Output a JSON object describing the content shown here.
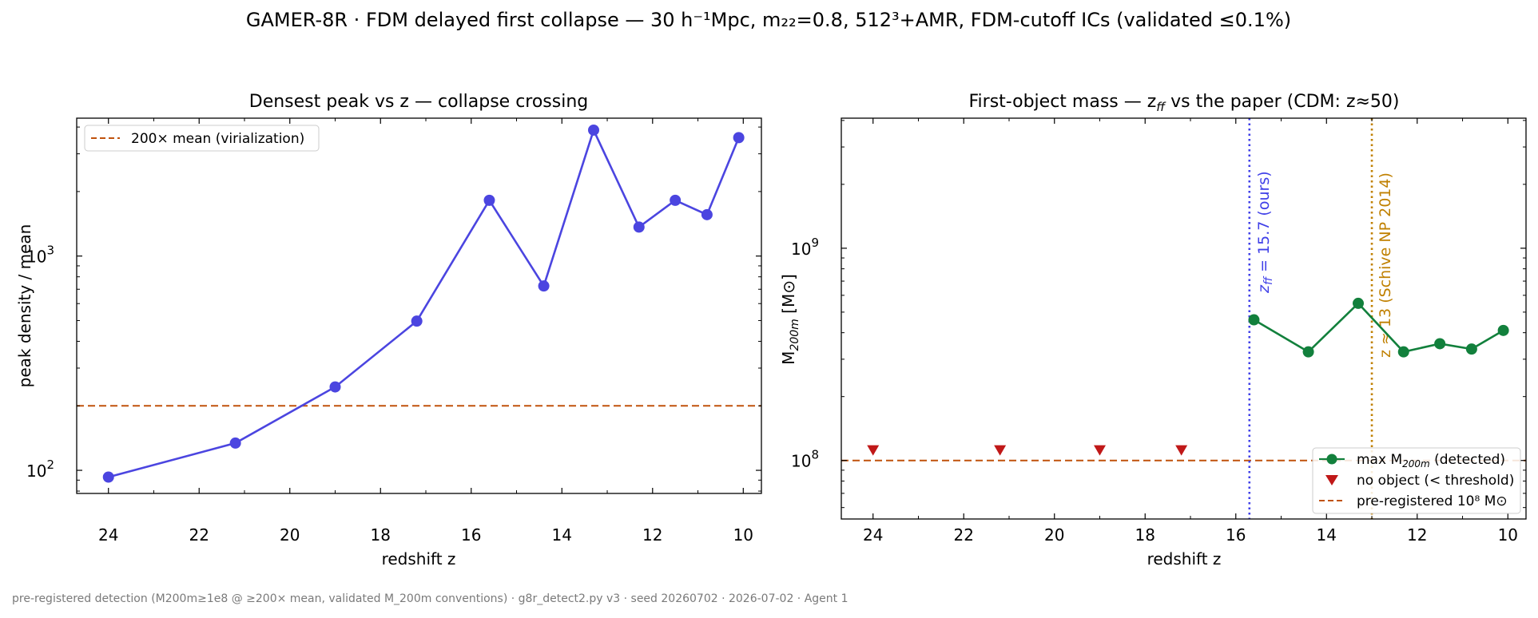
{
  "figure": {
    "suptitle": "GAMER-8R · FDM delayed first collapse — 30 h⁻¹Mpc, m₂₂=0.8, 512³+AMR, FDM-cutoff ICs (validated ≤0.1%)",
    "footer": "pre-registered detection (M200m≥1e8 @ ≥200× mean, validated M_200m conventions) · g8r_detect2.py v3 · seed 20260702 · 2026-07-02 · Agent 1"
  },
  "chart_data": [
    {
      "type": "line",
      "title": "Densest peak vs z — collapse crossing",
      "xlabel": "redshift z",
      "ylabel": "peak density / mean",
      "xlim": [
        24.7,
        9.6
      ],
      "ylim": [
        78,
        4400
      ],
      "yscale": "log",
      "x_inverted": true,
      "xticks": [
        "24",
        "22",
        "20",
        "18",
        "16",
        "14",
        "12",
        "10"
      ],
      "yticks": [
        {
          "base": "10",
          "exp": "2",
          "value": 100
        },
        {
          "base": "10",
          "exp": "3",
          "value": 1000
        }
      ],
      "series": [
        {
          "color": "#4b45e0",
          "x": [
            24.0,
            21.2,
            19.0,
            17.2,
            15.6,
            14.4,
            13.3,
            12.3,
            11.5,
            10.8,
            10.1
          ],
          "y": [
            93,
            134,
            245,
            497,
            1820,
            725,
            3870,
            1365,
            1820,
            1560,
            3570
          ]
        }
      ],
      "hlines": [
        {
          "y": 200,
          "color": "#c0520c",
          "style": "dashed",
          "label": "200× mean (virialization)"
        }
      ],
      "legend": {
        "position": "upper-left"
      }
    },
    {
      "type": "line",
      "title_parts": {
        "pre": "First-object mass — z",
        "sub": "ff",
        "post": " vs the paper (CDM: z≈50)"
      },
      "xlabel": "redshift z",
      "ylabel": {
        "pre": "M",
        "sub": "200m",
        "post": " [M",
        "symbol": "⊙",
        "close": "]"
      },
      "xlim": [
        24.7,
        9.6
      ],
      "ylim": [
        53000000.0,
        4100000000.0
      ],
      "yscale": "log",
      "x_inverted": true,
      "xticks": [
        "24",
        "22",
        "20",
        "18",
        "16",
        "14",
        "12",
        "10"
      ],
      "yticks": [
        {
          "base": "10",
          "exp": "8",
          "value": 100000000
        },
        {
          "base": "10",
          "exp": "9",
          "value": 1000000000
        }
      ],
      "series": [
        {
          "name": "max M200m (detected)",
          "color": "#12803c",
          "marker": "circle",
          "x": [
            15.6,
            14.4,
            13.3,
            12.3,
            11.5,
            10.8,
            10.1
          ],
          "y": [
            460000000.0,
            325000000.0,
            550000000.0,
            325000000.0,
            355000000.0,
            335000000.0,
            410000000.0
          ]
        },
        {
          "name": "no object (< threshold)",
          "color": "#c01818",
          "marker": "triangle-down",
          "x": [
            24.0,
            21.2,
            19.0,
            17.2
          ],
          "y": [
            112000000.0,
            112000000.0,
            112000000.0,
            112000000.0
          ]
        }
      ],
      "hlines": [
        {
          "y": 100000000,
          "color": "#c0520c",
          "style": "dashed",
          "label": "pre-registered 10⁸ M⊙"
        }
      ],
      "vlines": [
        {
          "x": 15.7,
          "color": "#4040e8",
          "style": "dotted",
          "label_pre": "z",
          "label_sub": "ff",
          "label_post": " = 15.7 (ours)"
        },
        {
          "x": 13.0,
          "color": "#c08000",
          "style": "dotted",
          "label": "z ≈ 13 (Schive NP 2014)"
        }
      ],
      "legend": {
        "position": "lower-right",
        "entries": [
          {
            "pre": "max M",
            "sub": "200m",
            "post": " (detected)"
          },
          {
            "pre": "no object (< threshold)",
            "sub": "",
            "post": ""
          },
          {
            "pre": "pre-registered 10⁸ M⊙",
            "sub": "",
            "post": ""
          }
        ]
      }
    }
  ]
}
